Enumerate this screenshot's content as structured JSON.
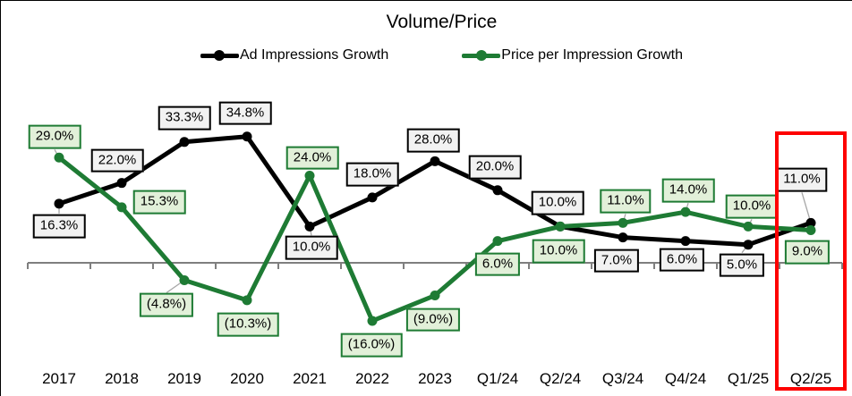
{
  "chart_data": {
    "type": "line",
    "title": "Volume/Price",
    "categories": [
      "2017",
      "2018",
      "2019",
      "2020",
      "2021",
      "2022",
      "2023",
      "Q1/24",
      "Q2/24",
      "Q3/24",
      "Q4/24",
      "Q1/25",
      "Q2/25"
    ],
    "series": [
      {
        "name": "Ad Impressions Growth",
        "color": "#000000",
        "values": [
          16.3,
          22.0,
          33.3,
          34.8,
          10.0,
          18.0,
          28.0,
          20.0,
          10.0,
          7.0,
          6.0,
          5.0,
          11.0
        ],
        "labels": [
          "16.3%",
          "22.0%",
          "33.3%",
          "34.8%",
          "10.0%",
          "18.0%",
          "28.0%",
          "20.0%",
          "10.0%",
          "7.0%",
          "6.0%",
          "5.0%",
          "11.0%"
        ],
        "label_bg": "#f2f2f2",
        "label_border": "#000000"
      },
      {
        "name": "Price per Impression Growth",
        "color": "#1e7b34",
        "values": [
          29.0,
          15.3,
          -4.8,
          -10.3,
          24.0,
          -16.0,
          -9.0,
          6.0,
          10.0,
          11.0,
          14.0,
          10.0,
          9.0
        ],
        "labels": [
          "29.0%",
          "15.3%",
          "(4.8%)",
          "(10.3%)",
          "24.0%",
          "(16.0%)",
          "(9.0%)",
          "6.0%",
          "10.0%",
          "11.0%",
          "14.0%",
          "10.0%",
          "9.0%"
        ],
        "label_bg": "#e2f0d9",
        "label_border": "#1e7b34"
      }
    ],
    "baseline_value": 0,
    "legend_position": "top",
    "grid": false,
    "axis_color": "#7f7f7f",
    "leader_color": "#a6a6a6",
    "highlight": {
      "category": "Q2/25",
      "color": "#fe0000"
    }
  }
}
